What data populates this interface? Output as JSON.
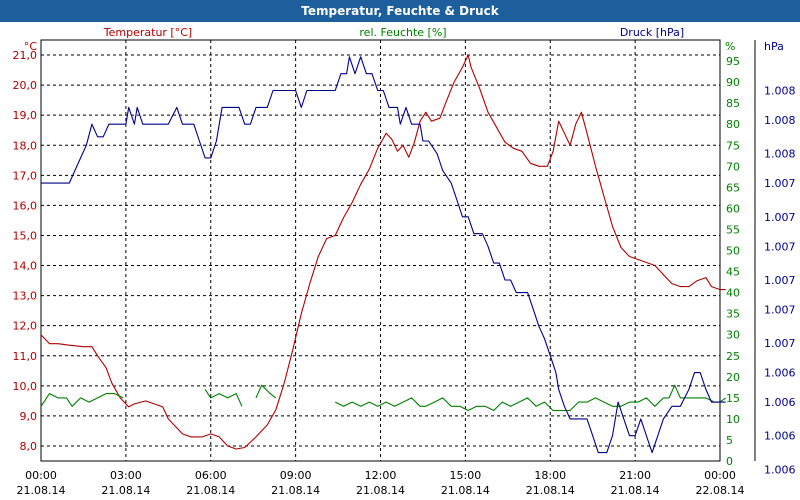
{
  "window": {
    "title": "Temperatur, Feuchte & Druck"
  },
  "colors": {
    "temperature": "#b00000",
    "humidity": "#008000",
    "pressure": "#00008b",
    "titlebar": "#1d5f9c"
  },
  "chart_data": {
    "type": "line",
    "title": "Temperatur, Feuchte & Druck",
    "x_axis": {
      "range_hours": [
        0,
        24
      ],
      "ticks": [
        {
          "hour": 0,
          "time": "00:00",
          "date": "21.08.14"
        },
        {
          "hour": 3,
          "time": "03:00",
          "date": "21.08.14"
        },
        {
          "hour": 6,
          "time": "06:00",
          "date": "21.08.14"
        },
        {
          "hour": 9,
          "time": "09:00",
          "date": "21.08.14"
        },
        {
          "hour": 12,
          "time": "12:00",
          "date": "21.08.14"
        },
        {
          "hour": 15,
          "time": "15:00",
          "date": "21.08.14"
        },
        {
          "hour": 18,
          "time": "18:00",
          "date": "21.08.14"
        },
        {
          "hour": 21,
          "time": "21:00",
          "date": "21.08.14"
        },
        {
          "hour": 24,
          "time": "00:00",
          "date": "22.08.14"
        }
      ]
    },
    "axes": {
      "temperature": {
        "unit": "°C",
        "range": [
          7.5,
          21.5
        ],
        "ticks": [
          "8,0",
          "9,0",
          "10,0",
          "11,0",
          "12,0",
          "13,0",
          "14,0",
          "15,0",
          "16,0",
          "17,0",
          "18,0",
          "19,0",
          "20,0",
          "21,0"
        ],
        "tick_values": [
          8,
          9,
          10,
          11,
          12,
          13,
          14,
          15,
          16,
          17,
          18,
          19,
          20,
          21
        ]
      },
      "humidity": {
        "unit": "%",
        "range": [
          0,
          100
        ],
        "tick_values": [
          0,
          5,
          10,
          15,
          20,
          25,
          30,
          35,
          40,
          45,
          50,
          55,
          60,
          65,
          70,
          75,
          80,
          85,
          90,
          95
        ]
      },
      "pressure": {
        "unit": "hPa",
        "range": [
          0,
          1
        ],
        "ticks": [
          "1.008",
          "1.008",
          "1.008",
          "1.007",
          "1.007",
          "1.007",
          "1.007",
          "1.007",
          "1.007",
          "1.006",
          "1.006",
          "1.006",
          "1.006"
        ],
        "tick_fractions": [
          0.88,
          0.81,
          0.73,
          0.66,
          0.58,
          0.51,
          0.43,
          0.36,
          0.28,
          0.21,
          0.14,
          0.06,
          -0.02
        ]
      }
    },
    "series": [
      {
        "name": "Temperatur [°C]",
        "axis": "temperature",
        "points": [
          [
            0,
            11.7
          ],
          [
            0.3,
            11.4
          ],
          [
            0.6,
            11.4
          ],
          [
            1.0,
            11.35
          ],
          [
            1.5,
            11.3
          ],
          [
            1.8,
            11.3
          ],
          [
            2.0,
            11.0
          ],
          [
            2.3,
            10.6
          ],
          [
            2.5,
            10.1
          ],
          [
            2.8,
            9.6
          ],
          [
            3.1,
            9.3
          ],
          [
            3.3,
            9.4
          ],
          [
            3.7,
            9.5
          ],
          [
            4.0,
            9.4
          ],
          [
            4.3,
            9.3
          ],
          [
            4.5,
            8.9
          ],
          [
            5.0,
            8.4
          ],
          [
            5.3,
            8.3
          ],
          [
            5.7,
            8.3
          ],
          [
            6.0,
            8.4
          ],
          [
            6.3,
            8.3
          ],
          [
            6.6,
            8.0
          ],
          [
            6.9,
            7.9
          ],
          [
            7.2,
            7.95
          ],
          [
            7.6,
            8.3
          ],
          [
            8.0,
            8.7
          ],
          [
            8.3,
            9.2
          ],
          [
            8.6,
            10.1
          ],
          [
            8.9,
            11.2
          ],
          [
            9.2,
            12.4
          ],
          [
            9.5,
            13.4
          ],
          [
            9.8,
            14.3
          ],
          [
            10.1,
            14.9
          ],
          [
            10.4,
            15.0
          ],
          [
            10.7,
            15.6
          ],
          [
            11.0,
            16.1
          ],
          [
            11.3,
            16.7
          ],
          [
            11.6,
            17.2
          ],
          [
            11.9,
            17.9
          ],
          [
            12.2,
            18.4
          ],
          [
            12.4,
            18.2
          ],
          [
            12.6,
            17.8
          ],
          [
            12.8,
            18.0
          ],
          [
            13.0,
            17.6
          ],
          [
            13.2,
            18.1
          ],
          [
            13.4,
            18.8
          ],
          [
            13.6,
            19.1
          ],
          [
            13.8,
            18.8
          ],
          [
            14.1,
            18.9
          ],
          [
            14.3,
            19.4
          ],
          [
            14.6,
            20.1
          ],
          [
            14.9,
            20.6
          ],
          [
            15.1,
            21.0
          ],
          [
            15.2,
            20.6
          ],
          [
            15.5,
            19.9
          ],
          [
            15.8,
            19.1
          ],
          [
            16.1,
            18.6
          ],
          [
            16.4,
            18.1
          ],
          [
            16.7,
            17.9
          ],
          [
            17.0,
            17.8
          ],
          [
            17.3,
            17.4
          ],
          [
            17.6,
            17.3
          ],
          [
            17.9,
            17.3
          ],
          [
            18.1,
            17.8
          ],
          [
            18.3,
            18.8
          ],
          [
            18.5,
            18.4
          ],
          [
            18.7,
            18.0
          ],
          [
            18.9,
            18.7
          ],
          [
            19.1,
            19.1
          ],
          [
            19.3,
            18.4
          ],
          [
            19.6,
            17.3
          ],
          [
            19.9,
            16.3
          ],
          [
            20.2,
            15.3
          ],
          [
            20.5,
            14.6
          ],
          [
            20.8,
            14.3
          ],
          [
            21.1,
            14.2
          ],
          [
            21.4,
            14.1
          ],
          [
            21.7,
            14.0
          ],
          [
            22.0,
            13.7
          ],
          [
            22.3,
            13.4
          ],
          [
            22.6,
            13.3
          ],
          [
            22.9,
            13.3
          ],
          [
            23.2,
            13.5
          ],
          [
            23.5,
            13.6
          ],
          [
            23.7,
            13.3
          ],
          [
            24.0,
            13.2
          ],
          [
            24.2,
            13.2
          ]
        ]
      },
      {
        "name": "rel. Feuchte [%]",
        "axis": "humidity",
        "segments": [
          [
            [
              0,
              13
            ],
            [
              0.3,
              16
            ],
            [
              0.6,
              15
            ],
            [
              0.9,
              15
            ],
            [
              1.1,
              13
            ],
            [
              1.4,
              15
            ],
            [
              1.7,
              14
            ],
            [
              2.0,
              15
            ],
            [
              2.3,
              16
            ],
            [
              2.6,
              16
            ],
            [
              2.9,
              15
            ]
          ],
          [
            [
              5.8,
              17
            ],
            [
              6.0,
              15
            ],
            [
              6.3,
              16
            ],
            [
              6.6,
              15
            ],
            [
              6.9,
              16
            ],
            [
              7.1,
              13
            ]
          ],
          [
            [
              7.6,
              15
            ],
            [
              7.8,
              18
            ],
            [
              8.1,
              16
            ],
            [
              8.3,
              15
            ]
          ],
          [
            [
              10.4,
              14
            ],
            [
              10.7,
              13
            ],
            [
              11.0,
              14
            ],
            [
              11.3,
              13
            ],
            [
              11.6,
              14
            ],
            [
              11.9,
              13
            ],
            [
              12.2,
              14
            ],
            [
              12.5,
              13
            ],
            [
              12.8,
              14
            ],
            [
              13.1,
              15
            ],
            [
              13.4,
              13
            ],
            [
              13.6,
              13
            ],
            [
              13.9,
              14
            ],
            [
              14.2,
              15
            ],
            [
              14.5,
              13
            ],
            [
              14.8,
              13
            ],
            [
              15.1,
              12
            ],
            [
              15.4,
              13
            ],
            [
              15.7,
              13
            ],
            [
              16.0,
              12
            ],
            [
              16.3,
              14
            ],
            [
              16.6,
              13
            ],
            [
              16.9,
              14
            ],
            [
              17.2,
              15
            ],
            [
              17.5,
              13
            ],
            [
              17.8,
              14
            ],
            [
              18.1,
              12
            ],
            [
              18.4,
              12
            ],
            [
              18.7,
              12
            ],
            [
              19.0,
              14
            ],
            [
              19.3,
              14
            ],
            [
              19.6,
              15
            ],
            [
              19.9,
              14
            ],
            [
              20.2,
              13
            ],
            [
              20.5,
              13
            ],
            [
              20.8,
              14
            ],
            [
              21.1,
              14
            ],
            [
              21.4,
              15
            ],
            [
              21.7,
              13
            ],
            [
              22.0,
              15
            ],
            [
              22.2,
              15
            ],
            [
              22.4,
              18
            ],
            [
              22.6,
              15
            ],
            [
              22.9,
              15
            ],
            [
              23.2,
              15
            ],
            [
              23.5,
              15
            ],
            [
              23.8,
              14
            ],
            [
              24.0,
              14
            ],
            [
              24.2,
              15
            ]
          ]
        ]
      },
      {
        "name": "Druck [hPa]",
        "axis": "pressure",
        "points": [
          [
            0,
            0.66
          ],
          [
            0.5,
            0.66
          ],
          [
            1.0,
            0.66
          ],
          [
            1.2,
            0.69
          ],
          [
            1.4,
            0.72
          ],
          [
            1.6,
            0.75
          ],
          [
            1.8,
            0.8
          ],
          [
            2.0,
            0.77
          ],
          [
            2.2,
            0.77
          ],
          [
            2.4,
            0.8
          ],
          [
            2.6,
            0.8
          ],
          [
            2.8,
            0.8
          ],
          [
            3.0,
            0.8
          ],
          [
            3.1,
            0.84
          ],
          [
            3.3,
            0.8
          ],
          [
            3.4,
            0.84
          ],
          [
            3.6,
            0.8
          ],
          [
            4.0,
            0.8
          ],
          [
            4.5,
            0.8
          ],
          [
            4.8,
            0.84
          ],
          [
            5.0,
            0.8
          ],
          [
            5.4,
            0.8
          ],
          [
            5.6,
            0.76
          ],
          [
            5.8,
            0.72
          ],
          [
            6.0,
            0.72
          ],
          [
            6.2,
            0.76
          ],
          [
            6.4,
            0.84
          ],
          [
            6.7,
            0.84
          ],
          [
            7.0,
            0.84
          ],
          [
            7.2,
            0.8
          ],
          [
            7.4,
            0.8
          ],
          [
            7.6,
            0.84
          ],
          [
            8.0,
            0.84
          ],
          [
            8.2,
            0.88
          ],
          [
            8.6,
            0.88
          ],
          [
            9.0,
            0.88
          ],
          [
            9.2,
            0.84
          ],
          [
            9.4,
            0.88
          ],
          [
            10.0,
            0.88
          ],
          [
            10.4,
            0.88
          ],
          [
            10.6,
            0.92
          ],
          [
            10.8,
            0.92
          ],
          [
            10.9,
            0.96
          ],
          [
            11.1,
            0.92
          ],
          [
            11.3,
            0.96
          ],
          [
            11.5,
            0.92
          ],
          [
            11.7,
            0.92
          ],
          [
            11.9,
            0.88
          ],
          [
            12.1,
            0.88
          ],
          [
            12.3,
            0.84
          ],
          [
            12.6,
            0.84
          ],
          [
            12.7,
            0.8
          ],
          [
            12.9,
            0.84
          ],
          [
            13.1,
            0.8
          ],
          [
            13.4,
            0.8
          ],
          [
            13.5,
            0.76
          ],
          [
            13.7,
            0.76
          ],
          [
            14.0,
            0.73
          ],
          [
            14.2,
            0.69
          ],
          [
            14.5,
            0.66
          ],
          [
            14.7,
            0.62
          ],
          [
            14.9,
            0.58
          ],
          [
            15.1,
            0.58
          ],
          [
            15.3,
            0.54
          ],
          [
            15.6,
            0.54
          ],
          [
            15.8,
            0.51
          ],
          [
            16.0,
            0.47
          ],
          [
            16.2,
            0.47
          ],
          [
            16.4,
            0.43
          ],
          [
            16.6,
            0.43
          ],
          [
            16.8,
            0.4
          ],
          [
            17.2,
            0.4
          ],
          [
            17.4,
            0.36
          ],
          [
            17.6,
            0.32
          ],
          [
            17.8,
            0.29
          ],
          [
            18.0,
            0.25
          ],
          [
            18.2,
            0.21
          ],
          [
            18.3,
            0.17
          ],
          [
            18.5,
            0.13
          ],
          [
            18.7,
            0.1
          ],
          [
            18.9,
            0.1
          ],
          [
            19.1,
            0.1
          ],
          [
            19.3,
            0.1
          ],
          [
            19.5,
            0.06
          ],
          [
            19.7,
            0.02
          ],
          [
            20.0,
            0.02
          ],
          [
            20.2,
            0.06
          ],
          [
            20.4,
            0.14
          ],
          [
            20.6,
            0.1
          ],
          [
            20.8,
            0.06
          ],
          [
            21.0,
            0.06
          ],
          [
            21.2,
            0.1
          ],
          [
            21.4,
            0.06
          ],
          [
            21.6,
            0.02
          ],
          [
            21.8,
            0.06
          ],
          [
            22.0,
            0.1
          ],
          [
            22.3,
            0.13
          ],
          [
            22.6,
            0.13
          ],
          [
            22.9,
            0.17
          ],
          [
            23.1,
            0.21
          ],
          [
            23.3,
            0.21
          ],
          [
            23.5,
            0.17
          ],
          [
            23.7,
            0.14
          ],
          [
            24.2,
            0.14
          ]
        ]
      }
    ],
    "legend": {
      "temperature": "Temperatur [°C]",
      "humidity": "rel. Feuchte [%]",
      "pressure": "Druck [hPa]"
    }
  }
}
